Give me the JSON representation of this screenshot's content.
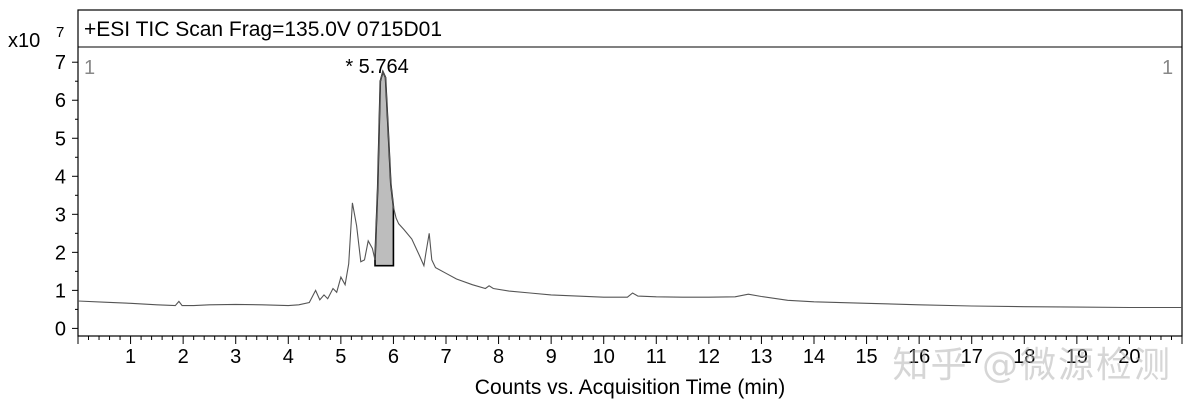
{
  "chart_data": {
    "type": "line",
    "title": "+ESI TIC Scan Frag=135.0V 0715D01",
    "xlabel": "Counts vs. Acquisition Time (min)",
    "ylabel": "",
    "y_scale_label": "x10",
    "y_scale_exp": "7",
    "xlim": [
      0,
      21
    ],
    "ylim": [
      -0.2,
      7.4
    ],
    "x_ticks": [
      1,
      2,
      3,
      4,
      5,
      6,
      7,
      8,
      9,
      10,
      11,
      12,
      13,
      14,
      15,
      16,
      17,
      18,
      19,
      20
    ],
    "y_ticks": [
      0,
      1,
      2,
      3,
      4,
      5,
      6,
      7
    ],
    "corner_markers": {
      "left": "1",
      "right": "1"
    },
    "peak_annotation": {
      "label": "* 5.764",
      "x": 5.764
    },
    "integrated_region": {
      "x_start": 5.65,
      "x_end": 6.0,
      "baseline": 1.65,
      "fill": "#bdbdbd"
    },
    "line_color": "#555555",
    "series": [
      {
        "points": [
          [
            0.0,
            0.72
          ],
          [
            0.5,
            0.69
          ],
          [
            1.0,
            0.66
          ],
          [
            1.5,
            0.62
          ],
          [
            1.85,
            0.6
          ],
          [
            1.92,
            0.71
          ],
          [
            1.98,
            0.6
          ],
          [
            2.2,
            0.6
          ],
          [
            2.5,
            0.62
          ],
          [
            3.0,
            0.63
          ],
          [
            3.5,
            0.62
          ],
          [
            4.0,
            0.6
          ],
          [
            4.2,
            0.62
          ],
          [
            4.4,
            0.68
          ],
          [
            4.52,
            1.0
          ],
          [
            4.6,
            0.75
          ],
          [
            4.68,
            0.88
          ],
          [
            4.75,
            0.78
          ],
          [
            4.85,
            1.05
          ],
          [
            4.92,
            0.95
          ],
          [
            5.0,
            1.35
          ],
          [
            5.08,
            1.15
          ],
          [
            5.15,
            1.7
          ],
          [
            5.22,
            3.3
          ],
          [
            5.3,
            2.7
          ],
          [
            5.38,
            1.75
          ],
          [
            5.45,
            1.8
          ],
          [
            5.52,
            2.3
          ],
          [
            5.6,
            2.1
          ],
          [
            5.65,
            1.8
          ],
          [
            5.7,
            3.7
          ],
          [
            5.75,
            6.5
          ],
          [
            5.8,
            6.75
          ],
          [
            5.85,
            6.6
          ],
          [
            5.9,
            5.2
          ],
          [
            5.95,
            3.8
          ],
          [
            6.0,
            3.2
          ],
          [
            6.05,
            2.9
          ],
          [
            6.1,
            2.75
          ],
          [
            6.2,
            2.6
          ],
          [
            6.35,
            2.35
          ],
          [
            6.5,
            1.9
          ],
          [
            6.58,
            1.65
          ],
          [
            6.62,
            2.0
          ],
          [
            6.68,
            2.5
          ],
          [
            6.73,
            1.8
          ],
          [
            6.8,
            1.6
          ],
          [
            7.0,
            1.45
          ],
          [
            7.2,
            1.3
          ],
          [
            7.5,
            1.15
          ],
          [
            7.75,
            1.05
          ],
          [
            7.82,
            1.12
          ],
          [
            7.9,
            1.05
          ],
          [
            8.2,
            0.98
          ],
          [
            8.6,
            0.93
          ],
          [
            9.0,
            0.88
          ],
          [
            9.5,
            0.85
          ],
          [
            10.0,
            0.82
          ],
          [
            10.45,
            0.82
          ],
          [
            10.55,
            0.93
          ],
          [
            10.65,
            0.85
          ],
          [
            11.0,
            0.83
          ],
          [
            11.5,
            0.82
          ],
          [
            12.0,
            0.82
          ],
          [
            12.5,
            0.83
          ],
          [
            12.75,
            0.9
          ],
          [
            13.0,
            0.84
          ],
          [
            13.5,
            0.74
          ],
          [
            14.0,
            0.7
          ],
          [
            15.0,
            0.66
          ],
          [
            16.0,
            0.62
          ],
          [
            17.0,
            0.59
          ],
          [
            18.0,
            0.57
          ],
          [
            19.0,
            0.56
          ],
          [
            20.0,
            0.55
          ],
          [
            21.0,
            0.55
          ]
        ]
      }
    ]
  },
  "watermark_text": "知乎 @微源检测"
}
